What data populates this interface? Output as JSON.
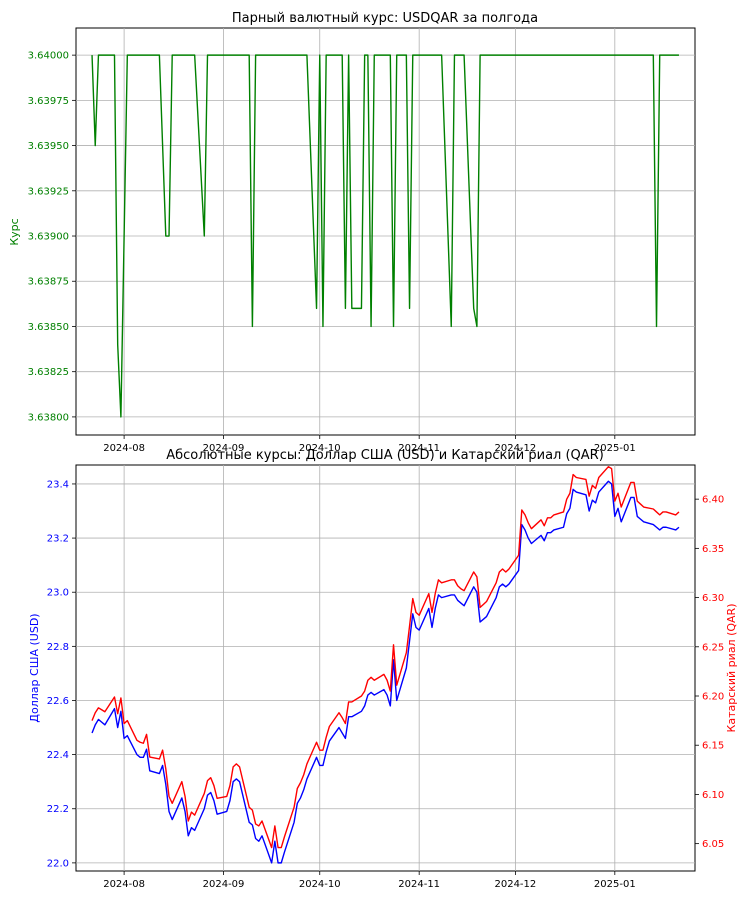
{
  "chart_data": [
    {
      "type": "line",
      "title": "Парный валютный курс: USDQAR за полгода",
      "xlabel": "",
      "ylabel": "Курс",
      "ylim": [
        3.6379,
        3.64015
      ],
      "yticks": [
        "3.63800",
        "3.63825",
        "3.63850",
        "3.63875",
        "3.63900",
        "3.63925",
        "3.63950",
        "3.63975",
        "3.64000"
      ],
      "xticks": [
        "2024-08",
        "2024-09",
        "2024-10",
        "2024-11",
        "2024-12",
        "2025-01"
      ],
      "grid": true,
      "colors": {
        "line": "#008000",
        "ytick_text": "#008000"
      },
      "series": [
        {
          "x": [
            "2024-07-22",
            "2024-07-23",
            "2024-07-24",
            "2024-07-25",
            "2024-07-26",
            "2024-07-29",
            "2024-07-30",
            "2024-07-31",
            "2024-08-01",
            "2024-08-02",
            "2024-08-05",
            "2024-08-06",
            "2024-08-07",
            "2024-08-08",
            "2024-08-09",
            "2024-08-12",
            "2024-08-13",
            "2024-08-14",
            "2024-08-15",
            "2024-08-16",
            "2024-08-19",
            "2024-08-20",
            "2024-08-21",
            "2024-08-22",
            "2024-08-23",
            "2024-08-26",
            "2024-08-27",
            "2024-08-28",
            "2024-08-29",
            "2024-08-30",
            "2024-09-02",
            "2024-09-03",
            "2024-09-04",
            "2024-09-05",
            "2024-09-06",
            "2024-09-09",
            "2024-09-10",
            "2024-09-11",
            "2024-09-12",
            "2024-09-13",
            "2024-09-16",
            "2024-09-17",
            "2024-09-18",
            "2024-09-19",
            "2024-09-20",
            "2024-09-23",
            "2024-09-24",
            "2024-09-25",
            "2024-09-26",
            "2024-09-27",
            "2024-09-30",
            "2024-10-01",
            "2024-10-02",
            "2024-10-03",
            "2024-10-04",
            "2024-10-07",
            "2024-10-08",
            "2024-10-09",
            "2024-10-10",
            "2024-10-11",
            "2024-10-14",
            "2024-10-15",
            "2024-10-16",
            "2024-10-17",
            "2024-10-18",
            "2024-10-21",
            "2024-10-22",
            "2024-10-23",
            "2024-10-24",
            "2024-10-25",
            "2024-10-28",
            "2024-10-29",
            "2024-10-30",
            "2024-10-31",
            "2024-11-01",
            "2024-11-04",
            "2024-11-05",
            "2024-11-06",
            "2024-11-07",
            "2024-11-08",
            "2024-11-11",
            "2024-11-12",
            "2024-11-13",
            "2024-11-14",
            "2024-11-15",
            "2024-11-18",
            "2024-11-19",
            "2024-11-20",
            "2024-11-21",
            "2024-11-22",
            "2024-11-25",
            "2024-11-26",
            "2024-11-27",
            "2024-11-28",
            "2024-11-29",
            "2024-12-02",
            "2024-12-03",
            "2024-12-04",
            "2024-12-05",
            "2024-12-06",
            "2024-12-09",
            "2024-12-10",
            "2024-12-11",
            "2024-12-12",
            "2024-12-13",
            "2024-12-16",
            "2024-12-17",
            "2024-12-18",
            "2024-12-19",
            "2024-12-20",
            "2024-12-23",
            "2024-12-24",
            "2024-12-25",
            "2024-12-26",
            "2024-12-27",
            "2024-12-30",
            "2024-12-31",
            "2025-01-01",
            "2025-01-02",
            "2025-01-03",
            "2025-01-06",
            "2025-01-07",
            "2025-01-08",
            "2025-01-09",
            "2025-01-10",
            "2025-01-13",
            "2025-01-14",
            "2025-01-15",
            "2025-01-16",
            "2025-01-17",
            "2025-01-20",
            "2025-01-21"
          ],
          "values": [
            3.64,
            3.6395,
            3.64,
            3.64,
            3.64,
            3.64,
            3.6384,
            3.638,
            3.639,
            3.64,
            3.64,
            3.64,
            3.64,
            3.64,
            3.64,
            3.64,
            3.6395,
            3.639,
            3.639,
            3.64,
            3.64,
            3.64,
            3.64,
            3.64,
            3.64,
            3.639,
            3.64,
            3.64,
            3.64,
            3.64,
            3.64,
            3.64,
            3.64,
            3.64,
            3.64,
            3.64,
            3.6385,
            3.64,
            3.64,
            3.64,
            3.64,
            3.64,
            3.64,
            3.64,
            3.64,
            3.64,
            3.64,
            3.64,
            3.64,
            3.64,
            3.6386,
            3.64,
            3.6385,
            3.64,
            3.64,
            3.64,
            3.64,
            3.6386,
            3.64,
            3.6386,
            3.6386,
            3.64,
            3.64,
            3.6385,
            3.64,
            3.64,
            3.64,
            3.64,
            3.6385,
            3.64,
            3.64,
            3.6386,
            3.64,
            3.64,
            3.64,
            3.64,
            3.64,
            3.64,
            3.64,
            3.64,
            3.6385,
            3.64,
            3.64,
            3.64,
            3.64,
            3.6386,
            3.6385,
            3.64,
            3.64,
            3.64,
            3.64,
            3.64,
            3.64,
            3.64,
            3.64,
            3.64,
            3.64,
            3.64,
            3.64,
            3.64,
            3.64,
            3.64,
            3.64,
            3.64,
            3.64,
            3.64,
            3.64,
            3.64,
            3.64,
            3.64,
            3.64,
            3.64,
            3.64,
            3.64,
            3.64,
            3.64,
            3.64,
            3.64,
            3.64,
            3.64,
            3.64,
            3.64,
            3.64,
            3.64,
            3.64,
            3.64,
            3.6385,
            3.64,
            3.64,
            3.64,
            3.64,
            3.64
          ]
        }
      ]
    },
    {
      "type": "line",
      "title": "Абсолютные курсы: Доллар США (USD) и Катарский риал (QAR)",
      "xlabel": "",
      "ylabel": "Доллар США (USD)",
      "y2label": "Катарский риал (QAR)",
      "ylim": [
        21.97,
        23.47
      ],
      "y2lim": [
        6.0222,
        6.4347
      ],
      "yticks": [
        "22.0",
        "22.2",
        "22.4",
        "22.6",
        "22.8",
        "23.0",
        "23.2",
        "23.4"
      ],
      "y2ticks": [
        "6.05",
        "6.10",
        "6.15",
        "6.20",
        "6.25",
        "6.30",
        "6.35",
        "6.40"
      ],
      "xticks": [
        "2024-08",
        "2024-09",
        "2024-10",
        "2024-11",
        "2024-12",
        "2025-01"
      ],
      "grid": true,
      "colors": {
        "usd": "#0000ff",
        "qar": "#ff0000",
        "left_axis_text": "#0000ff",
        "right_axis_text": "#ff0000"
      },
      "series": [
        {
          "name": "Доллар США (USD)",
          "axis": "left",
          "x": [
            "2024-07-22",
            "2024-07-23",
            "2024-07-24",
            "2024-07-25",
            "2024-07-26",
            "2024-07-29",
            "2024-07-30",
            "2024-07-31",
            "2024-08-01",
            "2024-08-02",
            "2024-08-05",
            "2024-08-06",
            "2024-08-07",
            "2024-08-08",
            "2024-08-09",
            "2024-08-12",
            "2024-08-13",
            "2024-08-14",
            "2024-08-15",
            "2024-08-16",
            "2024-08-19",
            "2024-08-20",
            "2024-08-21",
            "2024-08-22",
            "2024-08-23",
            "2024-08-26",
            "2024-08-27",
            "2024-08-28",
            "2024-08-29",
            "2024-08-30",
            "2024-09-02",
            "2024-09-03",
            "2024-09-04",
            "2024-09-05",
            "2024-09-06",
            "2024-09-09",
            "2024-09-10",
            "2024-09-11",
            "2024-09-12",
            "2024-09-13",
            "2024-09-16",
            "2024-09-17",
            "2024-09-18",
            "2024-09-19",
            "2024-09-20",
            "2024-09-23",
            "2024-09-24",
            "2024-09-25",
            "2024-09-26",
            "2024-09-27",
            "2024-09-30",
            "2024-10-01",
            "2024-10-02",
            "2024-10-03",
            "2024-10-04",
            "2024-10-07",
            "2024-10-08",
            "2024-10-09",
            "2024-10-10",
            "2024-10-11",
            "2024-10-14",
            "2024-10-15",
            "2024-10-16",
            "2024-10-17",
            "2024-10-18",
            "2024-10-21",
            "2024-10-22",
            "2024-10-23",
            "2024-10-24",
            "2024-10-25",
            "2024-10-28",
            "2024-10-29",
            "2024-10-30",
            "2024-10-31",
            "2024-11-01",
            "2024-11-04",
            "2024-11-05",
            "2024-11-06",
            "2024-11-07",
            "2024-11-08",
            "2024-11-11",
            "2024-11-12",
            "2024-11-13",
            "2024-11-14",
            "2024-11-15",
            "2024-11-18",
            "2024-11-19",
            "2024-11-20",
            "2024-11-21",
            "2024-11-22",
            "2024-11-25",
            "2024-11-26",
            "2024-11-27",
            "2024-11-28",
            "2024-11-29",
            "2024-12-02",
            "2024-12-03",
            "2024-12-04",
            "2024-12-05",
            "2024-12-06",
            "2024-12-09",
            "2024-12-10",
            "2024-12-11",
            "2024-12-12",
            "2024-12-13",
            "2024-12-16",
            "2024-12-17",
            "2024-12-18",
            "2024-12-19",
            "2024-12-20",
            "2024-12-23",
            "2024-12-24",
            "2024-12-25",
            "2024-12-26",
            "2024-12-27",
            "2024-12-30",
            "2024-12-31",
            "2025-01-01",
            "2025-01-02",
            "2025-01-03",
            "2025-01-06",
            "2025-01-07",
            "2025-01-08",
            "2025-01-09",
            "2025-01-10",
            "2025-01-13",
            "2025-01-14",
            "2025-01-15",
            "2025-01-16",
            "2025-01-17",
            "2025-01-20",
            "2025-01-21"
          ],
          "values": [
            22.48,
            22.51,
            22.53,
            22.52,
            22.51,
            22.57,
            22.5,
            22.56,
            22.46,
            22.47,
            22.4,
            22.39,
            22.39,
            22.42,
            22.34,
            22.33,
            22.36,
            22.29,
            22.19,
            22.16,
            22.24,
            22.19,
            22.1,
            22.13,
            22.12,
            22.2,
            22.25,
            22.26,
            22.23,
            22.18,
            22.19,
            22.23,
            22.3,
            22.31,
            22.3,
            22.15,
            22.14,
            22.09,
            22.08,
            22.1,
            22.0,
            22.08,
            22.0,
            22.0,
            22.04,
            22.15,
            22.22,
            22.24,
            22.27,
            22.31,
            22.39,
            22.36,
            22.36,
            22.41,
            22.45,
            22.5,
            22.48,
            22.46,
            22.54,
            22.54,
            22.56,
            22.58,
            22.62,
            22.63,
            22.62,
            22.64,
            22.62,
            22.58,
            22.75,
            22.6,
            22.72,
            22.82,
            22.92,
            22.87,
            22.86,
            22.94,
            22.87,
            22.94,
            22.99,
            22.98,
            22.99,
            22.99,
            22.97,
            22.96,
            22.95,
            23.02,
            23.0,
            22.89,
            22.9,
            22.91,
            22.98,
            23.02,
            23.03,
            23.02,
            23.03,
            23.08,
            23.25,
            23.23,
            23.2,
            23.18,
            23.21,
            23.19,
            23.22,
            23.22,
            23.23,
            23.24,
            23.29,
            23.31,
            23.38,
            23.37,
            23.36,
            23.3,
            23.34,
            23.33,
            23.37,
            23.41,
            23.4,
            23.28,
            23.31,
            23.26,
            23.35,
            23.35,
            23.28,
            23.27,
            23.26,
            23.25,
            23.24,
            23.23,
            23.24,
            23.24,
            23.23,
            23.24
          ],
          "note": ""
        },
        {
          "name": "Катарский риал (QAR)",
          "axis": "right",
          "x_same_as": "usd",
          "values": [
            6.175,
            6.183,
            6.188,
            6.186,
            6.184,
            6.199,
            6.182,
            6.198,
            6.172,
            6.175,
            6.155,
            6.153,
            6.152,
            6.161,
            6.138,
            6.136,
            6.145,
            6.126,
            6.098,
            6.091,
            6.113,
            6.098,
            6.073,
            6.082,
            6.079,
            6.101,
            6.114,
            6.117,
            6.109,
            6.096,
            6.098,
            6.109,
            6.128,
            6.131,
            6.128,
            6.087,
            6.084,
            6.07,
            6.068,
            6.073,
            6.046,
            6.068,
            6.046,
            6.046,
            6.057,
            6.087,
            6.106,
            6.112,
            6.12,
            6.131,
            6.153,
            6.145,
            6.145,
            6.158,
            6.169,
            6.183,
            6.178,
            6.172,
            6.194,
            6.194,
            6.2,
            6.205,
            6.216,
            6.219,
            6.216,
            6.222,
            6.216,
            6.205,
            6.252,
            6.211,
            6.244,
            6.271,
            6.299,
            6.285,
            6.282,
            6.304,
            6.285,
            6.304,
            6.318,
            6.315,
            6.318,
            6.318,
            6.312,
            6.309,
            6.307,
            6.326,
            6.321,
            6.29,
            6.293,
            6.296,
            6.315,
            6.326,
            6.329,
            6.326,
            6.329,
            6.343,
            6.389,
            6.384,
            6.376,
            6.37,
            6.379,
            6.373,
            6.381,
            6.381,
            6.384,
            6.387,
            6.4,
            6.406,
            6.425,
            6.422,
            6.42,
            6.403,
            6.414,
            6.411,
            6.422,
            6.433,
            6.431,
            6.398,
            6.406,
            6.392,
            6.417,
            6.417,
            6.398,
            6.395,
            6.392,
            6.39,
            6.387,
            6.384,
            6.387,
            6.387,
            6.384,
            6.387
          ]
        }
      ]
    }
  ]
}
